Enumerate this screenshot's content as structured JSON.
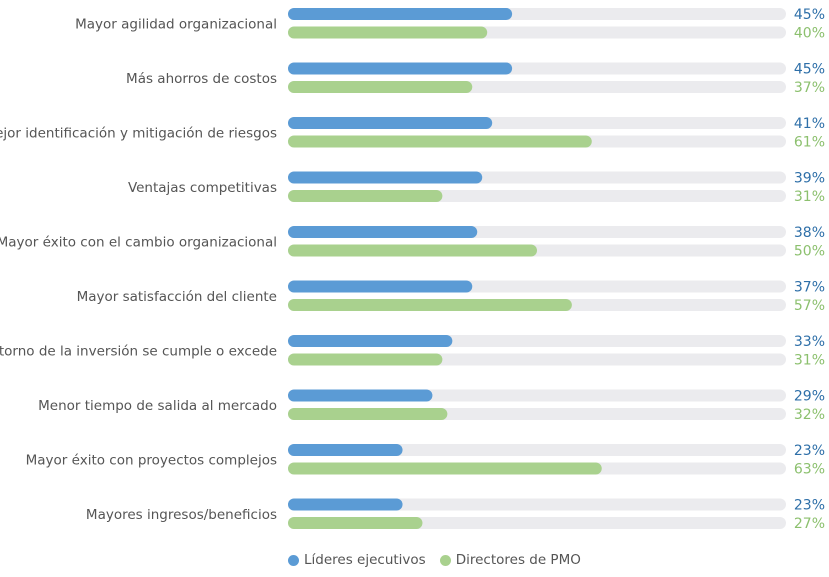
{
  "chart_data": {
    "type": "bar",
    "orientation": "horizontal",
    "categories": [
      "Mayor agilidad organizacional",
      "Más ahorros de costos",
      "Mejor identificación y mitigación de riesgos",
      "Ventajas competitivas",
      "Mayor éxito con el cambio organizacional",
      "Mayor satisfacción del cliente",
      "El retorno de la inversión se cumple o excede",
      "Menor tiempo de salida al mercado",
      "Mayor éxito con proyectos complejos",
      "Mayores ingresos/beneficios"
    ],
    "series": [
      {
        "name": "Líderes ejecutivos",
        "color": "#5b9bd5",
        "label_color": "#2e6fa8",
        "values": [
          45,
          45,
          41,
          39,
          38,
          37,
          33,
          29,
          23,
          23
        ],
        "labels": [
          "45%",
          "45%",
          "41%",
          "39%",
          "38%",
          "37%",
          "33%",
          "29%",
          "23%",
          "23%"
        ]
      },
      {
        "name": "Directores de PMO",
        "color": "#a9d18e",
        "label_color": "#8cc06e",
        "values": [
          40,
          37,
          61,
          31,
          50,
          57,
          31,
          32,
          63,
          27
        ],
        "labels": [
          "40%",
          "37%",
          "61%",
          "31%",
          "50%",
          "57%",
          "31%",
          "32%",
          "63%",
          "27%"
        ]
      }
    ],
    "xlim": [
      0,
      100
    ],
    "track_color": "#ebebee",
    "legend_position": "bottom"
  },
  "legend": {
    "items": [
      {
        "label": "Líderes ejecutivos",
        "color": "#5b9bd5"
      },
      {
        "label": "Directores de PMO",
        "color": "#a9d18e"
      }
    ]
  }
}
